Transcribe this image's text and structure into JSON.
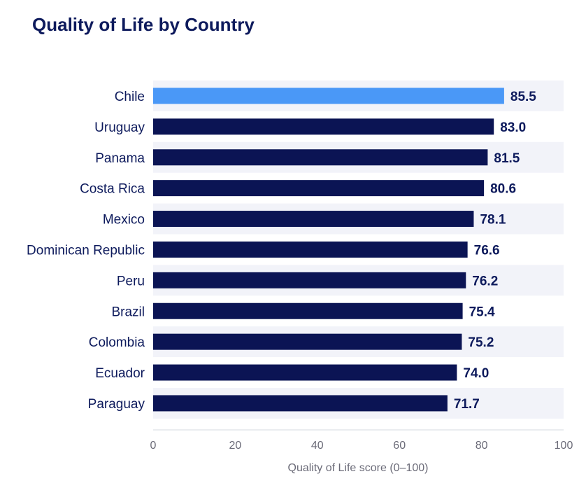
{
  "chart_data": {
    "type": "bar",
    "orientation": "horizontal",
    "title": "Quality of Life by Country",
    "xlabel": "Quality of Life score (0–100)",
    "ylabel": "",
    "xlim": [
      0,
      100
    ],
    "xticks": [
      "0",
      "20",
      "40",
      "60",
      "80",
      "100"
    ],
    "categories": [
      "Chile",
      "Uruguay",
      "Panama",
      "Costa Rica",
      "Mexico",
      "Dominican Republic",
      "Peru",
      "Brazil",
      "Colombia",
      "Ecuador",
      "Paraguay"
    ],
    "values": [
      85.5,
      83.0,
      81.5,
      80.6,
      78.1,
      76.6,
      76.2,
      75.4,
      75.2,
      74.0,
      71.7
    ],
    "value_labels": [
      "85.5",
      "83.0",
      "81.5",
      "80.6",
      "78.1",
      "76.6",
      "76.2",
      "75.4",
      "75.2",
      "74.0",
      "71.7"
    ],
    "highlight_category": "Chile",
    "colors": {
      "bar": "#0b1454",
      "highlight": "#4a98f7",
      "band": "#f2f3f9",
      "text": "#0d1a5c",
      "axis_text": "#6b6b78"
    },
    "grid": false,
    "legend": "none"
  }
}
